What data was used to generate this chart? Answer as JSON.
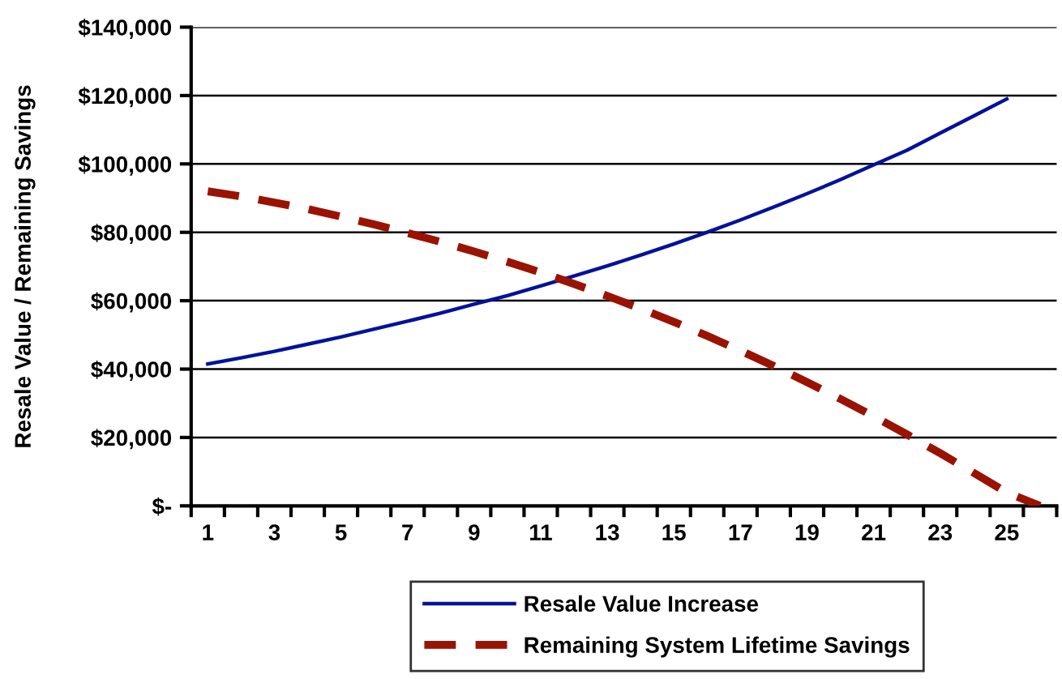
{
  "chart_data": {
    "type": "line",
    "ylabel": "Resale Value / Remaining Savings",
    "categories": [
      "1",
      null,
      "3",
      null,
      "5",
      null,
      "7",
      null,
      "9",
      null,
      "11",
      null,
      "13",
      null,
      "15",
      null,
      "17",
      null,
      "19",
      null,
      "21",
      null,
      "23",
      null,
      "25",
      null
    ],
    "series": [
      {
        "name": "Resale Value Increase",
        "color": "#00129a",
        "line_style": "solid",
        "values": [
          41500,
          43300,
          45200,
          47300,
          49400,
          51700,
          54000,
          56400,
          59000,
          61500,
          64300,
          67200,
          70200,
          73300,
          76600,
          80000,
          83600,
          87400,
          91300,
          95400,
          99700,
          104000,
          109000,
          114000,
          119000,
          null
        ]
      },
      {
        "name": "Remaining System Lifetime Savings",
        "color": "#9a1200",
        "line_style": "dashed",
        "values": [
          92000,
          90500,
          88700,
          86800,
          84600,
          82300,
          79800,
          77200,
          74400,
          71400,
          68300,
          64900,
          61400,
          57700,
          53800,
          49700,
          45400,
          40900,
          36200,
          31300,
          26200,
          20900,
          15400,
          9700,
          3900,
          0
        ]
      }
    ],
    "ylim": [
      0,
      140000
    ],
    "yticks": [
      {
        "value": 0,
        "label": "$-"
      },
      {
        "value": 20000,
        "label": "$20,000"
      },
      {
        "value": 40000,
        "label": "$40,000"
      },
      {
        "value": 60000,
        "label": "$60,000"
      },
      {
        "value": 80000,
        "label": "$80,000"
      },
      {
        "value": 100000,
        "label": "$100,000"
      },
      {
        "value": 120000,
        "label": "$120,000"
      },
      {
        "value": 140000,
        "label": "$140,000"
      }
    ],
    "grid": "y",
    "legend": "bottom",
    "marker": "none"
  }
}
